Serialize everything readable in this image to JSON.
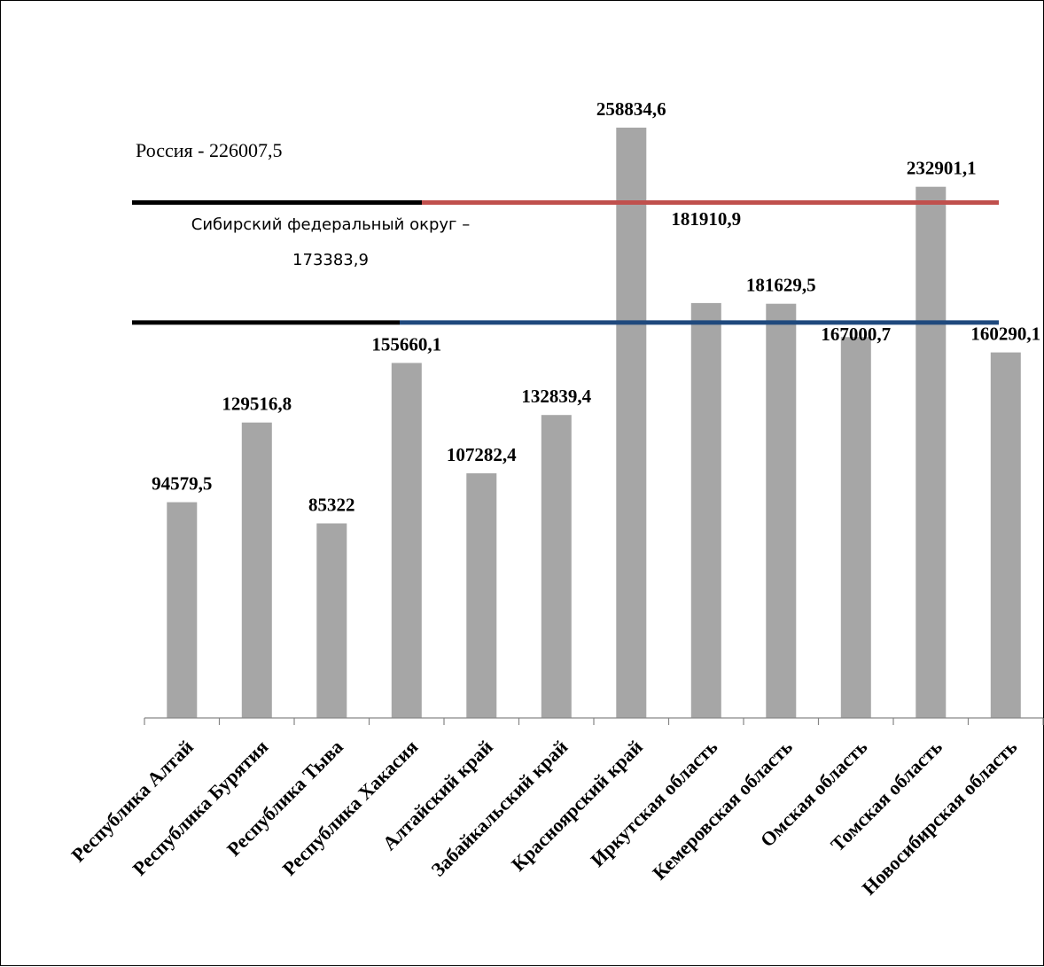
{
  "chart_data": {
    "type": "bar",
    "categories": [
      "Республика Алтай",
      "Республика Бурятия",
      "Республика Тыва",
      "Республика Хакасия",
      "Алтайский край",
      "Забайкальский край",
      "Красноярский край",
      "Иркутская область",
      "Кемеровская область",
      "Омская область",
      "Томская область",
      "Новосибирская область"
    ],
    "values": [
      94579.5,
      129516.8,
      85322,
      155660.1,
      107282.4,
      132839.4,
      258834.6,
      181910.9,
      181629.5,
      167000.7,
      232901.1,
      160290.1
    ],
    "data_labels": [
      "94579,5",
      "129516,8",
      "85322",
      "155660,1",
      "107282,4",
      "132839,4",
      "258834,6",
      "181910,9",
      "181629,5",
      "167000,7",
      "232901,1",
      "160290,1"
    ],
    "bar_color": "#a6a6a6",
    "ylim": [
      0,
      290000
    ],
    "grid": false,
    "reference_lines": [
      {
        "value": 226007.5,
        "label": "Россия - 226007,5",
        "color_left": "#000000",
        "color_right": "#c0504d"
      },
      {
        "value": 173383.9,
        "label_lines": [
          "Сибирский федеральный округ –",
          "173383,9"
        ],
        "color_left": "#000000",
        "color_right": "#1f497d"
      }
    ]
  }
}
